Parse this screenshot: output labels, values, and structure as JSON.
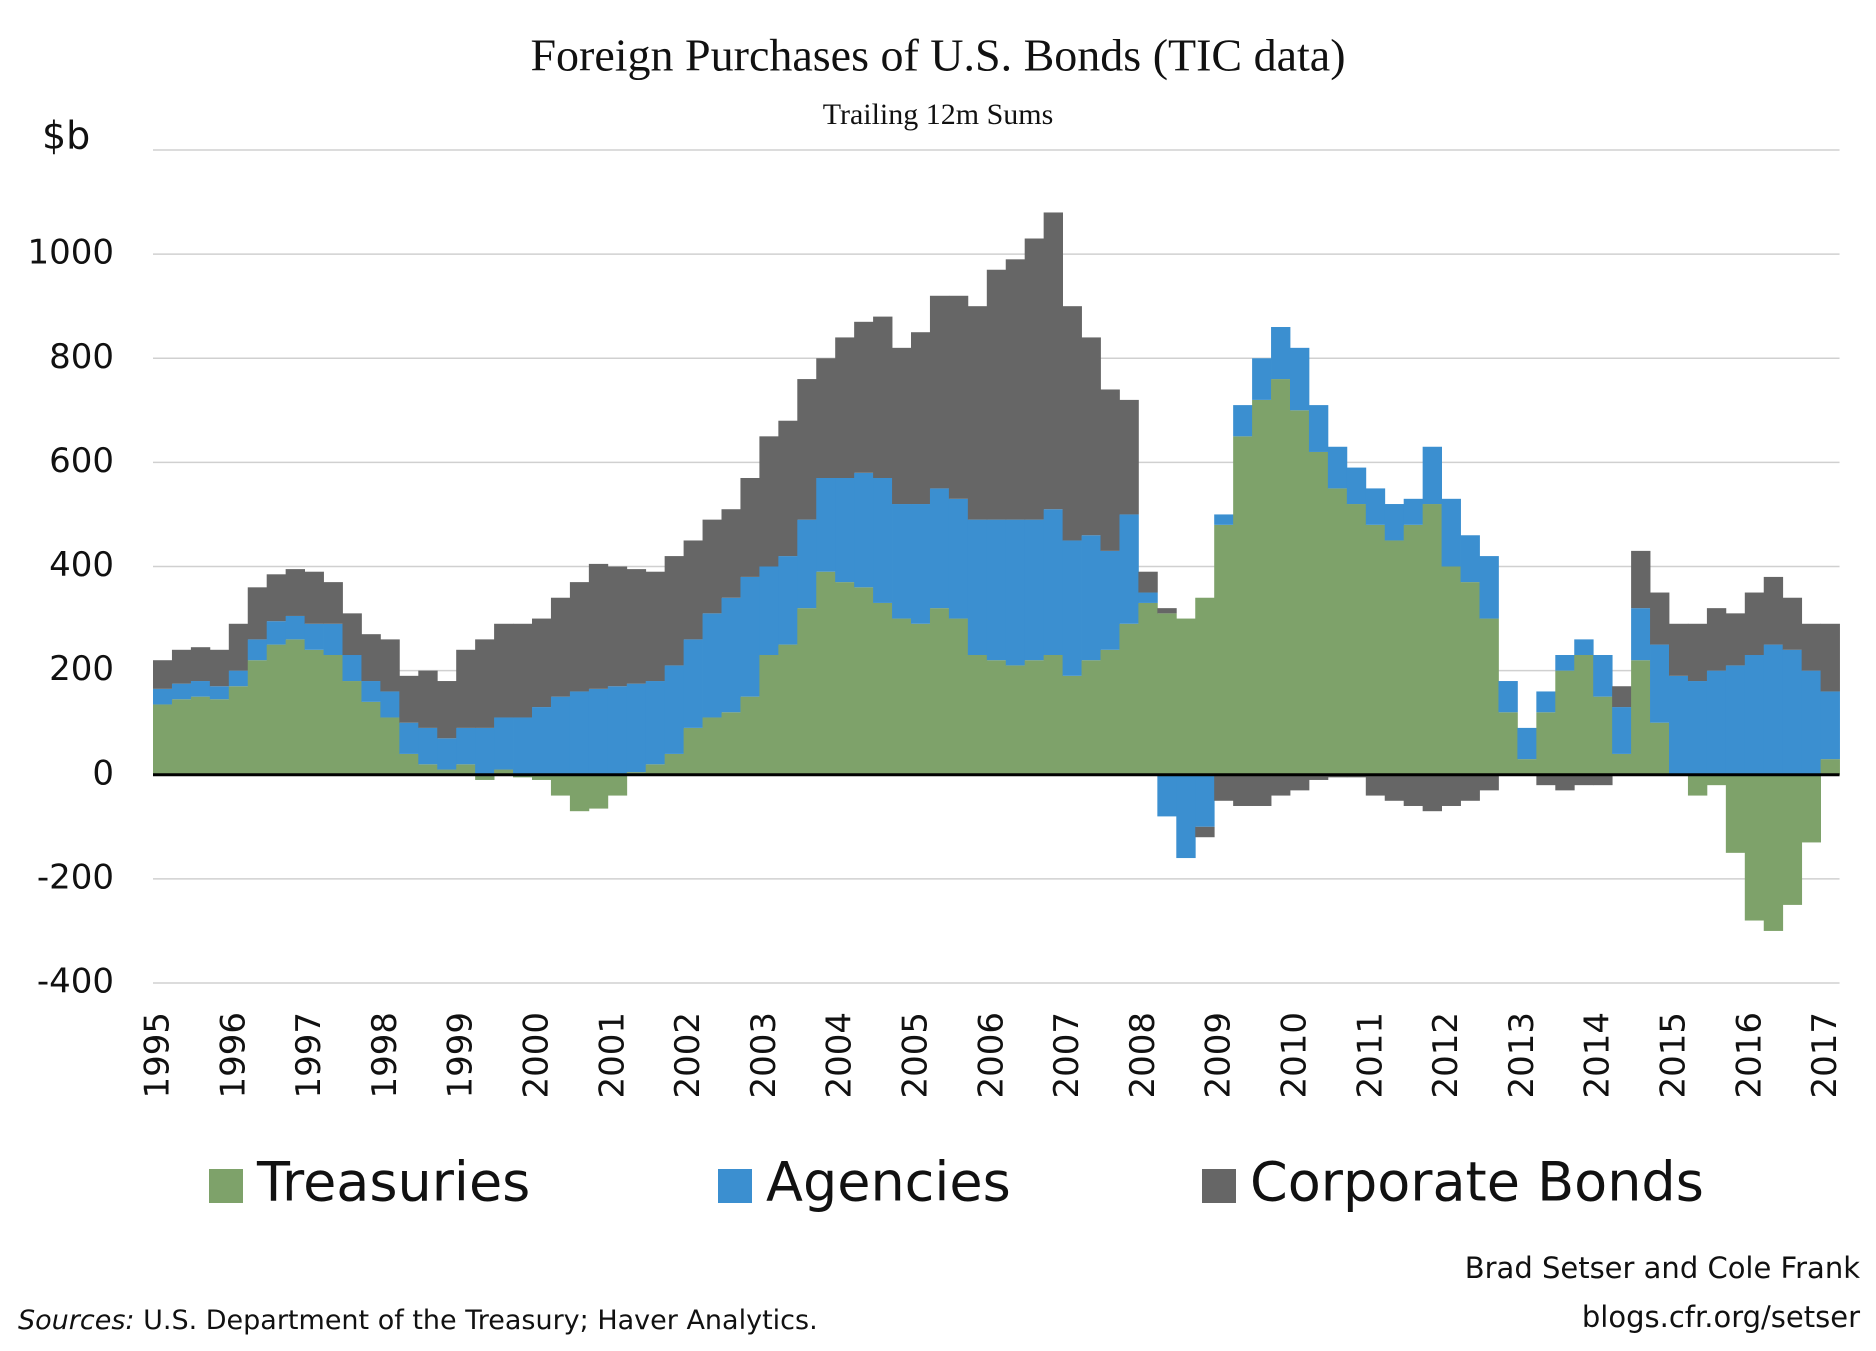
{
  "chart_data": {
    "type": "stacked_bar",
    "title": "Foreign Purchases of U.S. Bonds (TIC data)",
    "subtitle": "Trailing 12m Sums",
    "y_label": "$b",
    "categories": [
      "1995",
      null,
      null,
      null,
      "1996",
      null,
      null,
      null,
      "1997",
      null,
      null,
      null,
      "1998",
      null,
      null,
      null,
      "1999",
      null,
      null,
      null,
      "2000",
      null,
      null,
      null,
      "2001",
      null,
      null,
      null,
      "2002",
      null,
      null,
      null,
      "2003",
      null,
      null,
      null,
      "2004",
      null,
      null,
      null,
      "2005",
      null,
      null,
      null,
      "2006",
      null,
      null,
      null,
      "2007",
      null,
      null,
      null,
      "2008",
      null,
      null,
      null,
      "2009",
      null,
      null,
      null,
      "2010",
      null,
      null,
      null,
      "2011",
      null,
      null,
      null,
      "2012",
      null,
      null,
      null,
      "2013",
      null,
      null,
      null,
      "2014",
      null,
      null,
      null,
      "2015",
      null,
      null,
      null,
      "2016",
      null,
      null,
      null,
      "2017"
    ],
    "series": [
      {
        "name": "Treasuries",
        "color": "#7ea26a",
        "values": [
          135,
          145,
          150,
          145,
          170,
          220,
          250,
          260,
          240,
          230,
          180,
          140,
          110,
          40,
          20,
          10,
          20,
          -10,
          10,
          -5,
          -10,
          -40,
          -70,
          -65,
          -40,
          5,
          20,
          40,
          90,
          110,
          120,
          150,
          230,
          250,
          320,
          390,
          370,
          360,
          330,
          300,
          290,
          320,
          300,
          230,
          220,
          210,
          220,
          230,
          190,
          220,
          240,
          290,
          330,
          310,
          300,
          340,
          480,
          650,
          720,
          760,
          700,
          620,
          550,
          520,
          480,
          450,
          480,
          520,
          400,
          370,
          300,
          120,
          30,
          120,
          200,
          230,
          150,
          40,
          220,
          100,
          0,
          -40,
          -20,
          -150,
          -280,
          -300,
          -250,
          -130,
          30
        ]
      },
      {
        "name": "Agencies",
        "color": "#3b8fd0",
        "values": [
          30,
          30,
          30,
          25,
          30,
          40,
          45,
          45,
          50,
          60,
          50,
          40,
          50,
          60,
          70,
          60,
          70,
          90,
          100,
          110,
          130,
          150,
          160,
          165,
          170,
          170,
          160,
          170,
          170,
          200,
          220,
          230,
          170,
          170,
          170,
          180,
          200,
          220,
          240,
          220,
          230,
          230,
          230,
          260,
          270,
          280,
          270,
          280,
          260,
          240,
          190,
          210,
          20,
          -80,
          -160,
          -100,
          20,
          60,
          80,
          100,
          120,
          90,
          80,
          70,
          70,
          70,
          50,
          110,
          130,
          90,
          120,
          60,
          60,
          40,
          30,
          30,
          80,
          90,
          100,
          150,
          190,
          180,
          200,
          210,
          230,
          250,
          240,
          200,
          130
        ]
      },
      {
        "name": "Corporate Bonds",
        "color": "#666666",
        "values": [
          55,
          65,
          65,
          70,
          90,
          100,
          90,
          90,
          100,
          80,
          80,
          90,
          100,
          90,
          110,
          110,
          150,
          170,
          180,
          180,
          170,
          190,
          210,
          240,
          230,
          220,
          210,
          210,
          190,
          180,
          170,
          190,
          250,
          260,
          270,
          230,
          270,
          290,
          310,
          300,
          330,
          370,
          390,
          410,
          480,
          500,
          540,
          570,
          450,
          380,
          310,
          220,
          40,
          10,
          0,
          -20,
          -50,
          -60,
          -60,
          -40,
          -30,
          -10,
          -5,
          -5,
          -40,
          -50,
          -60,
          -70,
          -60,
          -50,
          -30,
          0,
          0,
          -20,
          -30,
          -20,
          -20,
          40,
          110,
          100,
          100,
          110,
          120,
          100,
          120,
          130,
          100,
          90,
          130
        ]
      }
    ],
    "ylim": [
      -400,
      1200
    ],
    "yticks": [
      -400,
      -200,
      0,
      200,
      400,
      600,
      800,
      1000
    ],
    "grid": true,
    "legend": "bottom",
    "credit": [
      "Brad Setser and Cole Frank",
      "blogs.cfr.org/setser"
    ],
    "source_label": "Sources:",
    "source": "U.S. Department of the Treasury; Haver Analytics."
  }
}
